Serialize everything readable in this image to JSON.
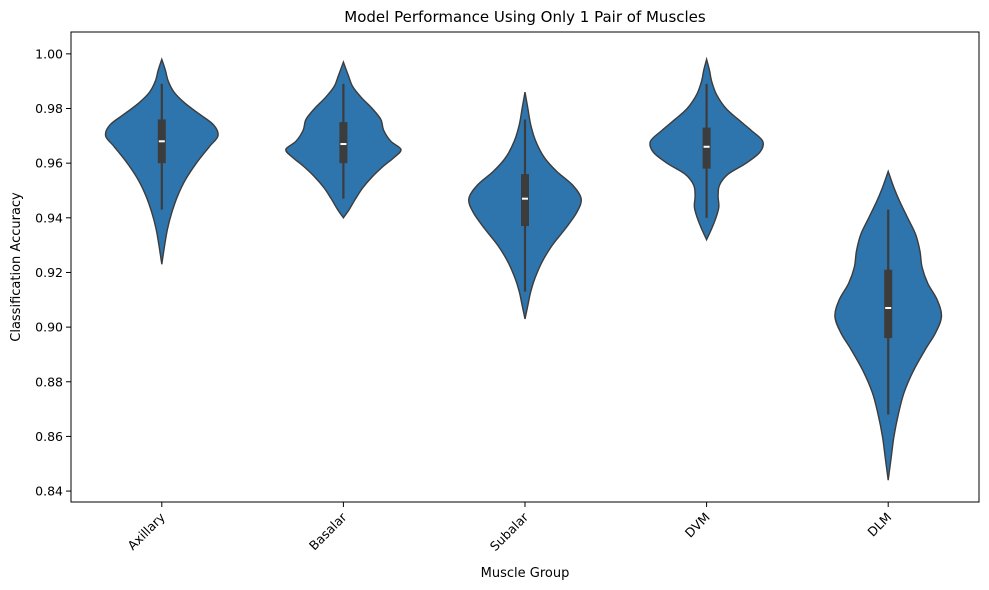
{
  "chart_data": {
    "type": "violin",
    "title": "Model Performance Using Only 1 Pair of Muscles",
    "xlabel": "Muscle Group",
    "ylabel": "Classification Accuracy",
    "ylim": [
      0.836,
      1.008
    ],
    "yticks": [
      0.84,
      0.86,
      0.88,
      0.9,
      0.92,
      0.94,
      0.96,
      0.98,
      1.0
    ],
    "ytick_labels": [
      "0.84",
      "0.86",
      "0.88",
      "0.90",
      "0.92",
      "0.94",
      "0.96",
      "0.98",
      "1.00"
    ],
    "categories": [
      "Axillary",
      "Basalar",
      "Subalar",
      "DVM",
      "DLM"
    ],
    "xtick_rotation": 45,
    "grid": false,
    "color": "#2e74ad",
    "edge_color": "#3c3c3c",
    "groups": [
      {
        "name": "Axillary",
        "median": 0.968,
        "q1": 0.96,
        "q3": 0.976,
        "whisker_low": 0.943,
        "whisker_high": 0.989,
        "min": 0.923,
        "max": 0.998,
        "profile": [
          [
            0.923,
            0.0
          ],
          [
            0.93,
            0.04
          ],
          [
            0.936,
            0.08
          ],
          [
            0.942,
            0.14
          ],
          [
            0.948,
            0.22
          ],
          [
            0.954,
            0.33
          ],
          [
            0.96,
            0.48
          ],
          [
            0.966,
            0.66
          ],
          [
            0.97,
            0.78
          ],
          [
            0.974,
            0.72
          ],
          [
            0.978,
            0.52
          ],
          [
            0.982,
            0.32
          ],
          [
            0.986,
            0.17
          ],
          [
            0.99,
            0.09
          ],
          [
            0.994,
            0.05
          ],
          [
            0.998,
            0.0
          ]
        ]
      },
      {
        "name": "Basalar",
        "median": 0.967,
        "q1": 0.96,
        "q3": 0.975,
        "whisker_low": 0.947,
        "whisker_high": 0.989,
        "min": 0.94,
        "max": 0.997,
        "profile": [
          [
            0.94,
            0.0
          ],
          [
            0.943,
            0.08
          ],
          [
            0.947,
            0.17
          ],
          [
            0.951,
            0.27
          ],
          [
            0.955,
            0.4
          ],
          [
            0.959,
            0.56
          ],
          [
            0.962,
            0.7
          ],
          [
            0.965,
            0.8
          ],
          [
            0.968,
            0.66
          ],
          [
            0.972,
            0.56
          ],
          [
            0.976,
            0.52
          ],
          [
            0.98,
            0.4
          ],
          [
            0.984,
            0.25
          ],
          [
            0.988,
            0.13
          ],
          [
            0.992,
            0.07
          ],
          [
            0.997,
            0.0
          ]
        ]
      },
      {
        "name": "Subalar",
        "median": 0.947,
        "q1": 0.937,
        "q3": 0.956,
        "whisker_low": 0.913,
        "whisker_high": 0.976,
        "min": 0.903,
        "max": 0.986,
        "profile": [
          [
            0.903,
            0.0
          ],
          [
            0.908,
            0.04
          ],
          [
            0.913,
            0.08
          ],
          [
            0.918,
            0.14
          ],
          [
            0.924,
            0.24
          ],
          [
            0.93,
            0.38
          ],
          [
            0.936,
            0.56
          ],
          [
            0.942,
            0.72
          ],
          [
            0.947,
            0.78
          ],
          [
            0.952,
            0.66
          ],
          [
            0.957,
            0.44
          ],
          [
            0.962,
            0.27
          ],
          [
            0.968,
            0.15
          ],
          [
            0.974,
            0.08
          ],
          [
            0.98,
            0.04
          ],
          [
            0.986,
            0.0
          ]
        ]
      },
      {
        "name": "DVM",
        "median": 0.966,
        "q1": 0.958,
        "q3": 0.973,
        "whisker_low": 0.94,
        "whisker_high": 0.989,
        "min": 0.932,
        "max": 0.998,
        "profile": [
          [
            0.932,
            0.0
          ],
          [
            0.936,
            0.07
          ],
          [
            0.94,
            0.13
          ],
          [
            0.944,
            0.17
          ],
          [
            0.948,
            0.16
          ],
          [
            0.952,
            0.18
          ],
          [
            0.956,
            0.3
          ],
          [
            0.96,
            0.55
          ],
          [
            0.964,
            0.74
          ],
          [
            0.968,
            0.78
          ],
          [
            0.972,
            0.62
          ],
          [
            0.976,
            0.44
          ],
          [
            0.98,
            0.27
          ],
          [
            0.985,
            0.14
          ],
          [
            0.99,
            0.07
          ],
          [
            0.994,
            0.04
          ],
          [
            0.998,
            0.0
          ]
        ]
      },
      {
        "name": "DLM",
        "median": 0.907,
        "q1": 0.896,
        "q3": 0.921,
        "whisker_low": 0.868,
        "whisker_high": 0.943,
        "min": 0.844,
        "max": 0.957,
        "profile": [
          [
            0.844,
            0.0
          ],
          [
            0.852,
            0.04
          ],
          [
            0.86,
            0.08
          ],
          [
            0.868,
            0.14
          ],
          [
            0.876,
            0.22
          ],
          [
            0.884,
            0.35
          ],
          [
            0.892,
            0.52
          ],
          [
            0.898,
            0.66
          ],
          [
            0.904,
            0.74
          ],
          [
            0.91,
            0.68
          ],
          [
            0.916,
            0.55
          ],
          [
            0.922,
            0.47
          ],
          [
            0.928,
            0.44
          ],
          [
            0.934,
            0.38
          ],
          [
            0.94,
            0.27
          ],
          [
            0.946,
            0.16
          ],
          [
            0.951,
            0.08
          ],
          [
            0.957,
            0.0
          ]
        ]
      }
    ]
  }
}
